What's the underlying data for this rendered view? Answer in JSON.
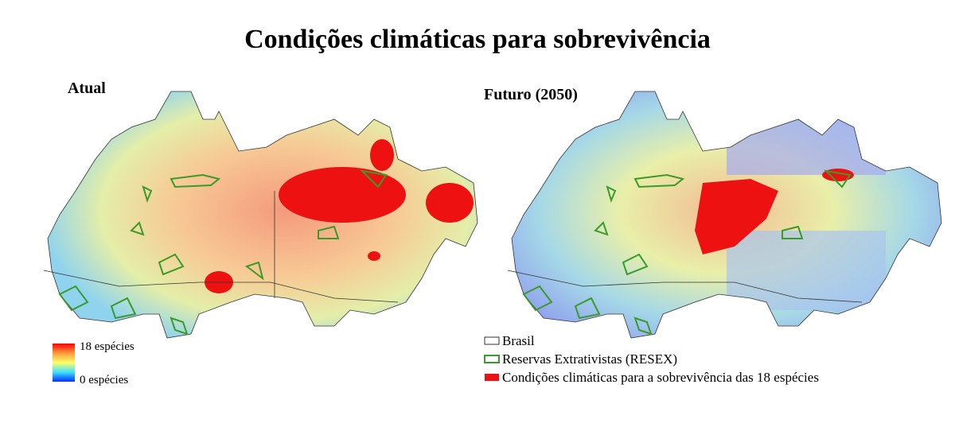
{
  "title": "Condições climáticas para sobrevivência",
  "maps": [
    {
      "label": "Atual"
    },
    {
      "label": "Futuro (2050)"
    }
  ],
  "colorbar": {
    "max_label": "18 espécies",
    "min_label": "0 espécies"
  },
  "legend": [
    {
      "label": "Brasil"
    },
    {
      "label": "Reservas Extrativistas (RESEX)"
    },
    {
      "label": "Condições climáticas para a sobrevivência das 18 espécies"
    }
  ]
}
